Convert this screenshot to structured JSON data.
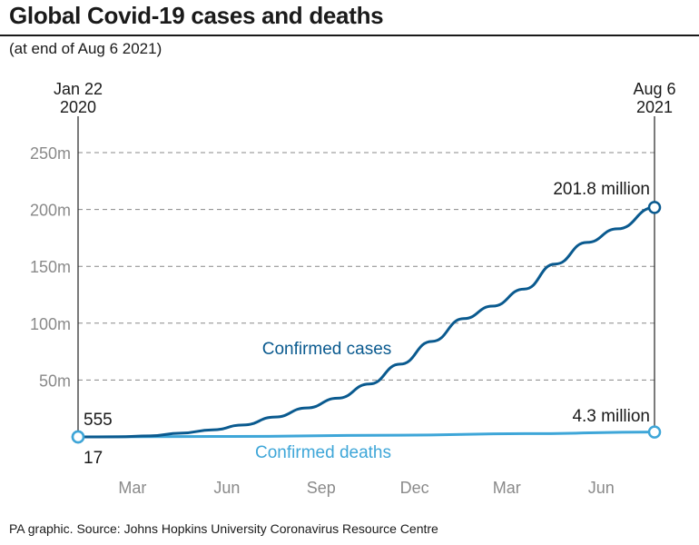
{
  "header": {
    "title": "Global Covid-19 cases and deaths",
    "subtitle": "(at end of Aug 6 2021)"
  },
  "footer": {
    "source": "PA graphic. Source: Johns Hopkins University Coronavirus Resource Centre"
  },
  "colors": {
    "cases": "#0a5a8f",
    "deaths": "#3ea6d8",
    "grid": "#888888",
    "axis_text": "#8a8a8a",
    "text": "#1a1a1a"
  },
  "chart_data": {
    "type": "line",
    "xlabel": "",
    "ylabel": "",
    "x_range": [
      "2020-01-22",
      "2021-08-06"
    ],
    "x_start_label": [
      "Jan 22",
      "2020"
    ],
    "x_end_label": [
      "Aug 6",
      "2021"
    ],
    "x_ticks": [
      {
        "label": "Mar",
        "date": "2020-03-15"
      },
      {
        "label": "Jun",
        "date": "2020-06-15"
      },
      {
        "label": "Sep",
        "date": "2020-09-15"
      },
      {
        "label": "Dec",
        "date": "2020-12-15"
      },
      {
        "label": "Mar",
        "date": "2021-03-15"
      },
      {
        "label": "Jun",
        "date": "2021-06-15"
      }
    ],
    "ylim": [
      0,
      250000000
    ],
    "y_ticks": [
      {
        "label": "50m",
        "value": 50000000
      },
      {
        "label": "100m",
        "value": 100000000
      },
      {
        "label": "150m",
        "value": 150000000
      },
      {
        "label": "200m",
        "value": 200000000
      },
      {
        "label": "250m",
        "value": 250000000
      }
    ],
    "grid": "horizontal-dashed",
    "series": [
      {
        "name": "Confirmed cases",
        "color": "#0a5a8f",
        "start_label": "555",
        "end_label": "201.8 million",
        "points": [
          [
            "2020-01-22",
            555
          ],
          [
            "2020-03-01",
            90000
          ],
          [
            "2020-04-01",
            900000
          ],
          [
            "2020-05-01",
            3300000
          ],
          [
            "2020-06-01",
            6200000
          ],
          [
            "2020-07-01",
            10500000
          ],
          [
            "2020-08-01",
            17500000
          ],
          [
            "2020-09-01",
            25500000
          ],
          [
            "2020-10-01",
            34000000
          ],
          [
            "2020-11-01",
            46500000
          ],
          [
            "2020-12-01",
            64000000
          ],
          [
            "2021-01-01",
            84000000
          ],
          [
            "2021-02-01",
            104000000
          ],
          [
            "2021-03-01",
            115000000
          ],
          [
            "2021-04-01",
            130000000
          ],
          [
            "2021-05-01",
            152000000
          ],
          [
            "2021-06-01",
            171000000
          ],
          [
            "2021-07-01",
            183000000
          ],
          [
            "2021-08-06",
            201800000
          ]
        ]
      },
      {
        "name": "Confirmed deaths",
        "color": "#3ea6d8",
        "start_label": "17",
        "end_label": "4.3 million",
        "points": [
          [
            "2020-01-22",
            17
          ],
          [
            "2020-06-01",
            380000
          ],
          [
            "2020-12-01",
            1470000
          ],
          [
            "2021-04-01",
            2850000
          ],
          [
            "2021-08-06",
            4300000
          ]
        ]
      }
    ]
  }
}
